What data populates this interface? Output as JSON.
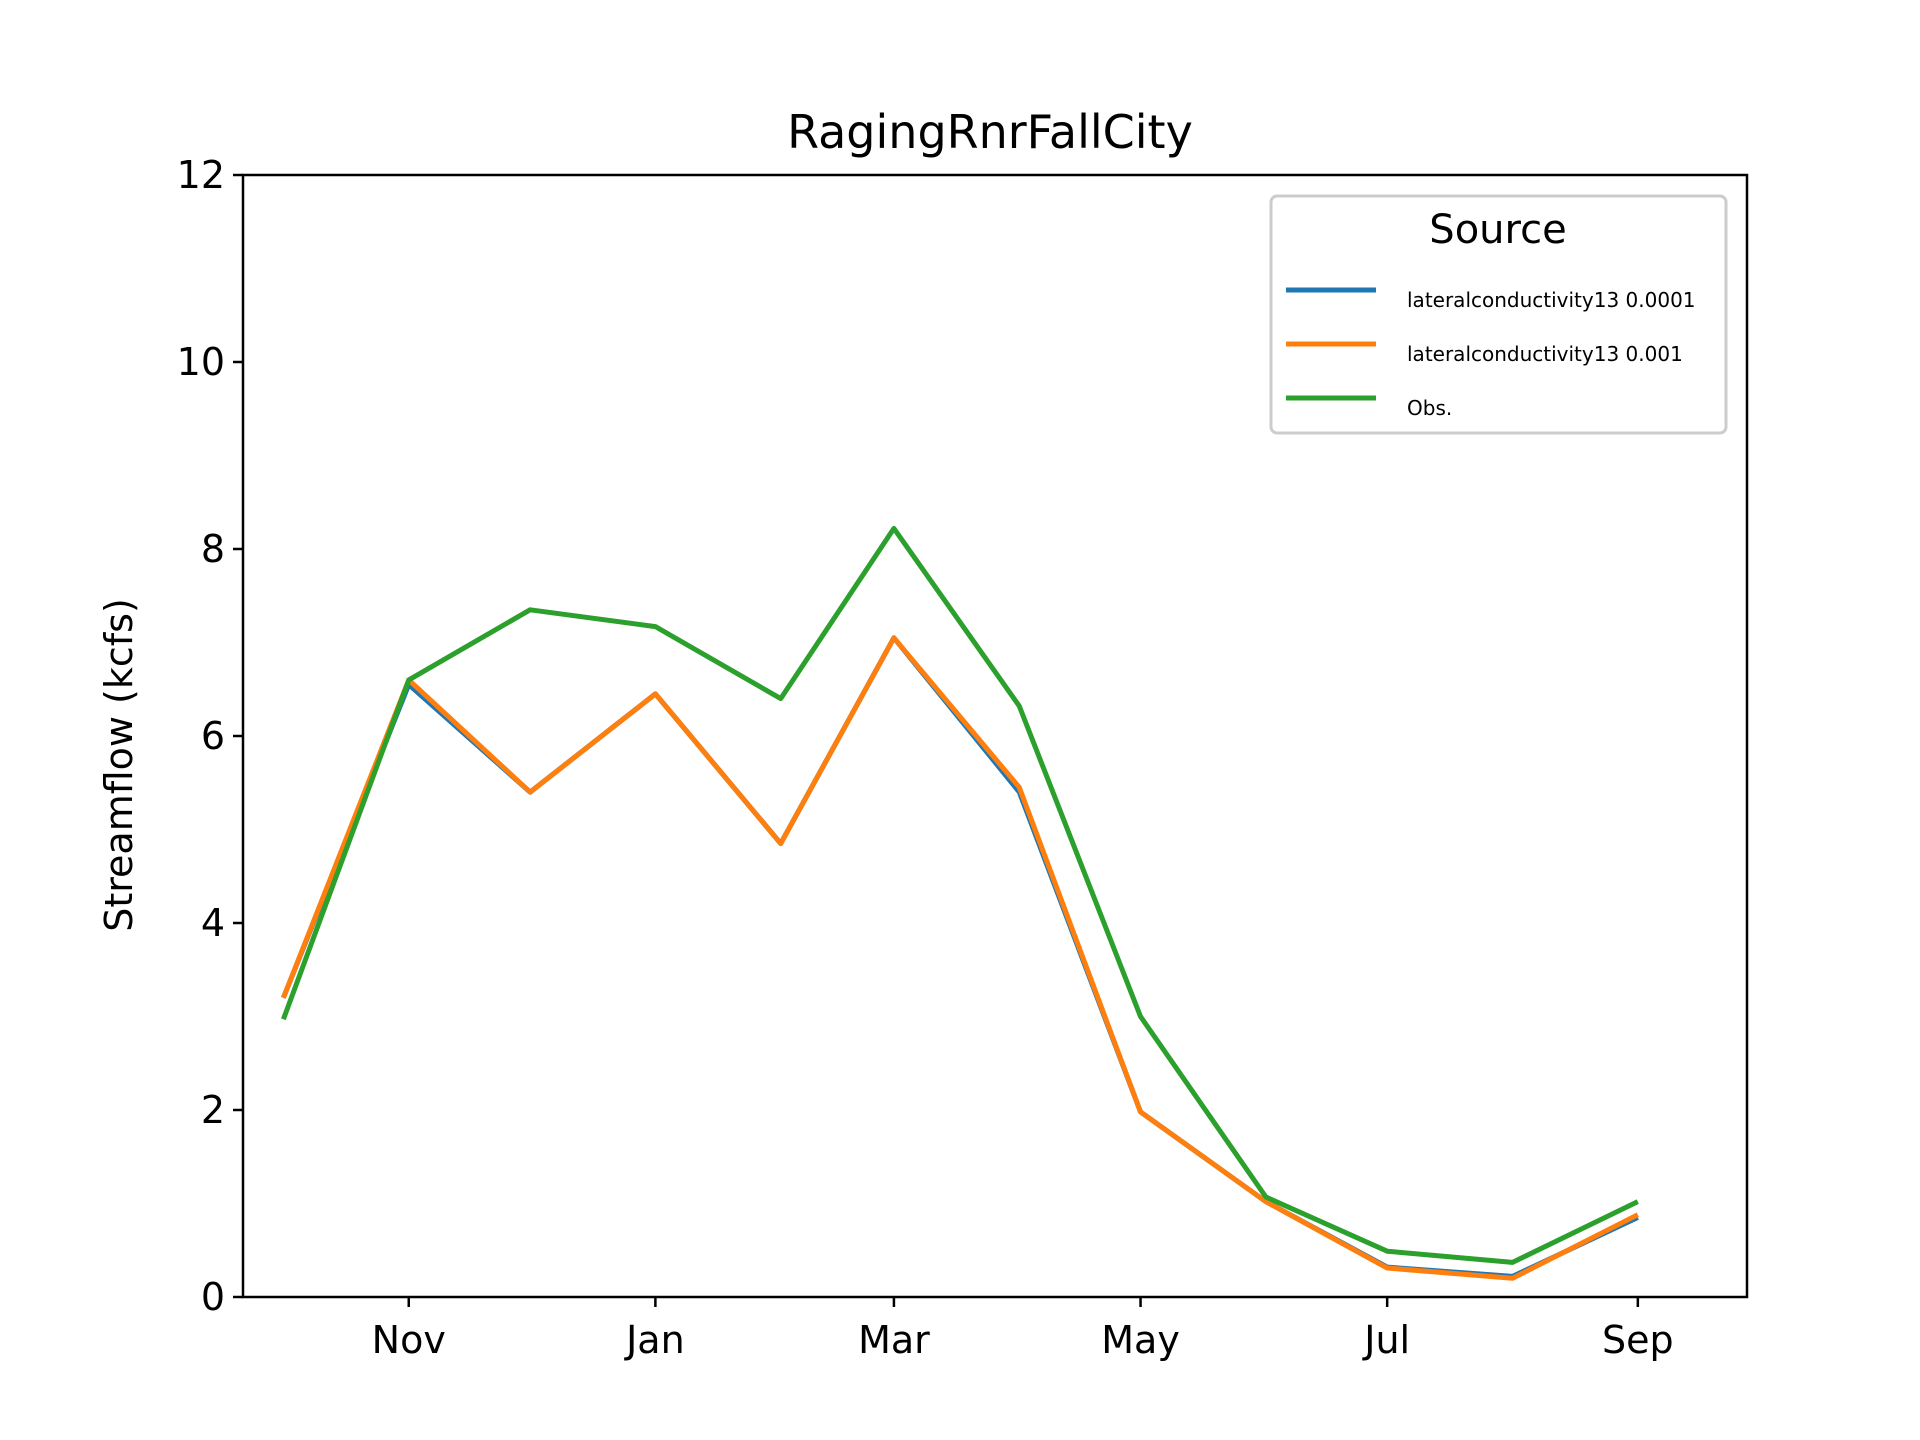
{
  "chart_data": {
    "type": "line",
    "title": "RagingRnrFallCity",
    "xlabel": "",
    "ylabel": "Streamflow (kcfs)",
    "ylim": [
      0,
      12
    ],
    "yticks": [
      0,
      2,
      4,
      6,
      8,
      10,
      12
    ],
    "x": [
      "2000-10-01",
      "2000-11-01",
      "2000-12-01",
      "2001-01-01",
      "2001-02-01",
      "2001-03-01",
      "2001-04-01",
      "2001-05-01",
      "2001-06-01",
      "2001-07-01",
      "2001-08-01",
      "2001-09-01"
    ],
    "xlim": [
      "2000-09-21",
      "2001-09-28"
    ],
    "xticks": [
      {
        "date": "2000-11-01",
        "label": "Nov"
      },
      {
        "date": "2001-01-01",
        "label": "Jan"
      },
      {
        "date": "2001-03-01",
        "label": "Mar"
      },
      {
        "date": "2001-05-01",
        "label": "May"
      },
      {
        "date": "2001-07-01",
        "label": "Jul"
      },
      {
        "date": "2001-09-01",
        "label": "Sep"
      }
    ],
    "legend_title": "Source",
    "legend_position": "top-right",
    "grid": false,
    "series": [
      {
        "name": "lateralconductivity13 0.0001",
        "color": "#1f77b4",
        "values": [
          3.2,
          6.55,
          5.4,
          6.45,
          4.85,
          7.05,
          5.4,
          1.98,
          1.02,
          0.32,
          0.22,
          0.85
        ]
      },
      {
        "name": "lateralconductivity13 0.001",
        "color": "#ff7f0e",
        "values": [
          3.2,
          6.6,
          5.4,
          6.45,
          4.85,
          7.05,
          5.45,
          1.98,
          1.02,
          0.31,
          0.2,
          0.88
        ]
      },
      {
        "name": "Obs.",
        "color": "#2ca02c",
        "values": [
          2.97,
          6.6,
          7.35,
          7.17,
          6.4,
          8.22,
          6.32,
          3.0,
          1.07,
          0.49,
          0.37,
          1.02
        ]
      }
    ]
  }
}
